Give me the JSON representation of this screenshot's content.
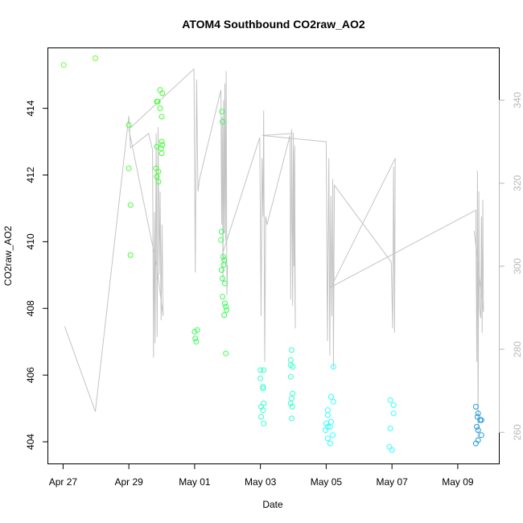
{
  "chart_data": {
    "type": "scatter",
    "title": "ATOM4 Southbound CO2raw_AO2",
    "xlabel": "Date",
    "ylabel": "CO2raw_AO2",
    "x_ticks": [
      {
        "label": "Apr 27",
        "day": 0
      },
      {
        "label": "Apr 29",
        "day": 2
      },
      {
        "label": "May 01",
        "day": 4
      },
      {
        "label": "May 03",
        "day": 6
      },
      {
        "label": "May 05",
        "day": 8
      },
      {
        "label": "May 07",
        "day": 10
      },
      {
        "label": "May 09",
        "day": 12
      }
    ],
    "xlim_days": [
      -0.45,
      13.25
    ],
    "left_axis": {
      "ticks": [
        404,
        406,
        408,
        410,
        412,
        414
      ],
      "ylim": [
        403.35,
        415.8
      ]
    },
    "right_axis": {
      "ticks": [
        260,
        280,
        300,
        320,
        340
      ],
      "ylim": [
        252.5,
        352.5
      ]
    },
    "grid": false,
    "legend": "none",
    "colors": {
      "line": "#c4c4c4",
      "axis": "#000000",
      "right_axis": "#b8b8b8"
    },
    "scatter_series": [
      {
        "color": "#66ff33",
        "points": [
          [
            0.02,
            415.3
          ],
          [
            0.98,
            415.5
          ]
        ]
      },
      {
        "color": "#44ff33",
        "points": [
          [
            2.0,
            413.5
          ],
          [
            2.0,
            412.2
          ],
          [
            2.05,
            411.1
          ],
          [
            2.05,
            409.6
          ],
          [
            2.85,
            414.2
          ],
          [
            2.88,
            414.2
          ],
          [
            2.95,
            414.55
          ],
          [
            3.02,
            414.45
          ],
          [
            2.95,
            414.0
          ],
          [
            3.0,
            413.75
          ],
          [
            2.85,
            412.85
          ],
          [
            3.0,
            413.0
          ],
          [
            3.02,
            412.9
          ],
          [
            2.98,
            412.8
          ],
          [
            3.0,
            412.65
          ],
          [
            2.82,
            412.2
          ],
          [
            2.85,
            411.95
          ],
          [
            2.9,
            412.1
          ],
          [
            2.9,
            411.8
          ]
        ]
      },
      {
        "color": "#33ff55",
        "points": [
          [
            4.0,
            407.3
          ],
          [
            4.08,
            407.35
          ],
          [
            4.02,
            407.1
          ],
          [
            4.05,
            407.0
          ],
          [
            4.83,
            413.9
          ],
          [
            4.85,
            413.6
          ],
          [
            4.82,
            410.3
          ],
          [
            4.8,
            410.05
          ],
          [
            4.87,
            409.55
          ],
          [
            4.9,
            409.45
          ],
          [
            4.88,
            409.3
          ],
          [
            4.82,
            409.15
          ],
          [
            4.85,
            408.9
          ],
          [
            4.92,
            408.75
          ],
          [
            4.85,
            408.35
          ],
          [
            4.92,
            408.15
          ],
          [
            4.95,
            408.05
          ],
          [
            4.97,
            407.95
          ],
          [
            4.9,
            407.8
          ],
          [
            4.95,
            406.65
          ]
        ]
      },
      {
        "color": "#33ffcc",
        "points": [
          [
            6.0,
            406.15
          ],
          [
            6.1,
            406.15
          ],
          [
            6.0,
            405.9
          ],
          [
            6.08,
            405.65
          ],
          [
            6.08,
            405.6
          ],
          [
            6.1,
            405.15
          ],
          [
            6.02,
            405.05
          ],
          [
            6.08,
            404.95
          ],
          [
            6.02,
            404.75
          ],
          [
            6.1,
            404.55
          ],
          [
            6.95,
            406.75
          ],
          [
            6.92,
            406.45
          ],
          [
            6.92,
            406.3
          ],
          [
            6.98,
            406.25
          ],
          [
            6.92,
            405.95
          ],
          [
            6.98,
            405.45
          ],
          [
            6.95,
            405.3
          ],
          [
            6.92,
            405.15
          ],
          [
            6.97,
            405.05
          ],
          [
            6.95,
            404.7
          ]
        ]
      },
      {
        "color": "#33ffff",
        "points": [
          [
            8.22,
            406.25
          ],
          [
            8.15,
            405.35
          ],
          [
            8.22,
            405.2
          ],
          [
            8.05,
            404.95
          ],
          [
            8.05,
            404.8
          ],
          [
            8.15,
            404.6
          ],
          [
            8.0,
            404.55
          ],
          [
            8.05,
            404.45
          ],
          [
            8.12,
            404.45
          ],
          [
            7.98,
            404.35
          ],
          [
            8.2,
            404.2
          ],
          [
            8.05,
            404.1
          ],
          [
            8.12,
            403.95
          ],
          [
            9.95,
            405.25
          ],
          [
            10.05,
            405.1
          ],
          [
            10.05,
            404.85
          ],
          [
            9.95,
            404.4
          ],
          [
            9.92,
            403.85
          ],
          [
            10.0,
            403.75
          ]
        ]
      },
      {
        "color": "#2299dd",
        "points": [
          [
            12.55,
            405.05
          ],
          [
            12.62,
            404.85
          ],
          [
            12.6,
            404.75
          ],
          [
            12.68,
            404.65
          ],
          [
            12.72,
            404.65
          ],
          [
            12.58,
            404.45
          ],
          [
            12.62,
            404.35
          ],
          [
            12.72,
            404.2
          ],
          [
            12.62,
            404.05
          ],
          [
            12.55,
            403.95
          ]
        ]
      }
    ],
    "line_series": {
      "name": "",
      "axis": "right",
      "points": [
        [
          0.05,
          285.5
        ],
        [
          0.98,
          265.0
        ],
        [
          2.0,
          336.2
        ],
        [
          2.05,
          328.5
        ],
        [
          2.6,
          332.0
        ],
        [
          2.72,
          328.0
        ],
        [
          2.75,
          278.0
        ],
        [
          2.78,
          313.0
        ],
        [
          2.8,
          281.5
        ],
        [
          2.83,
          332.0
        ],
        [
          2.86,
          283.0
        ],
        [
          2.89,
          333.5
        ],
        [
          2.92,
          298.0
        ],
        [
          2.95,
          318.0
        ],
        [
          2.98,
          287.0
        ],
        [
          3.01,
          310.0
        ],
        [
          3.04,
          288.0
        ],
        [
          2.85,
          300.0
        ],
        [
          2.0,
          333.0
        ],
        [
          3.98,
          347.5
        ],
        [
          4.02,
          298.5
        ],
        [
          4.06,
          345.0
        ],
        [
          4.1,
          318.0
        ],
        [
          4.15,
          321.0
        ],
        [
          4.8,
          342.5
        ],
        [
          4.82,
          310.0
        ],
        [
          4.84,
          336.0
        ],
        [
          4.86,
          296.0
        ],
        [
          4.88,
          340.0
        ],
        [
          4.9,
          308.0
        ],
        [
          4.92,
          344.0
        ],
        [
          4.94,
          306.0
        ],
        [
          4.96,
          347.0
        ],
        [
          4.98,
          293.0
        ],
        [
          5.0,
          300.0
        ],
        [
          4.85,
          303.0
        ],
        [
          5.98,
          331.0
        ],
        [
          6.02,
          288.0
        ],
        [
          6.05,
          326.0
        ],
        [
          6.08,
          312.0
        ],
        [
          6.1,
          337.5
        ],
        [
          6.13,
          277.0
        ],
        [
          6.16,
          312.0
        ],
        [
          6.2,
          310.0
        ],
        [
          6.9,
          331.5
        ],
        [
          6.92,
          292.0
        ],
        [
          6.95,
          333.0
        ],
        [
          6.98,
          290.5
        ],
        [
          7.0,
          328.0
        ],
        [
          7.02,
          300.0
        ],
        [
          7.04,
          329.0
        ],
        [
          7.06,
          285.0
        ],
        [
          7.0,
          332.0
        ],
        [
          6.05,
          331.5
        ],
        [
          8.0,
          330.0
        ],
        [
          8.04,
          282.0
        ],
        [
          8.08,
          326.0
        ],
        [
          8.11,
          278.5
        ],
        [
          8.14,
          317.0
        ],
        [
          8.17,
          288.0
        ],
        [
          8.2,
          321.0
        ],
        [
          8.22,
          275.5
        ],
        [
          8.25,
          319.5
        ],
        [
          9.98,
          301.0
        ],
        [
          10.02,
          285.0
        ],
        [
          10.05,
          324.0
        ],
        [
          10.08,
          284.0
        ],
        [
          10.1,
          326.0
        ],
        [
          8.15,
          295.0
        ],
        [
          12.55,
          313.5
        ],
        [
          12.58,
          277.0
        ],
        [
          12.6,
          323.0
        ],
        [
          12.62,
          258.5
        ],
        [
          12.64,
          318.0
        ],
        [
          12.66,
          290.0
        ],
        [
          12.7,
          287.5
        ],
        [
          12.72,
          312.0
        ],
        [
          12.74,
          284.0
        ],
        [
          12.76,
          316.0
        ],
        [
          12.78,
          289.0
        ],
        [
          12.5,
          308.5
        ]
      ]
    }
  }
}
